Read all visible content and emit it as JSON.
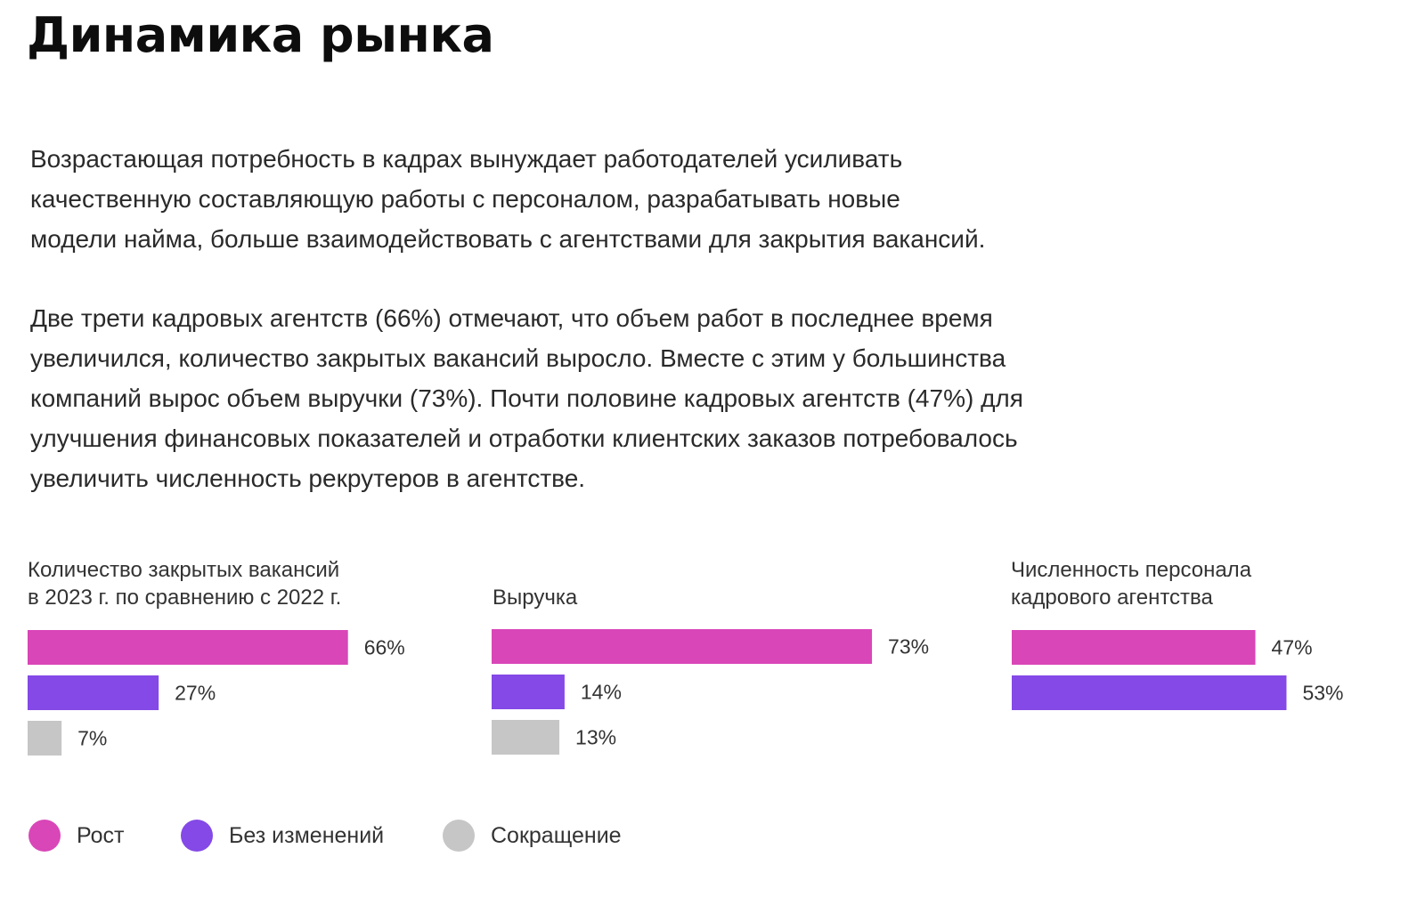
{
  "title": "Динамика рынка",
  "paragraphs": [
    {
      "lines": [
        "Возрастающая потребность в кадрах вынуждает работодателей усиливать",
        "качественную составляющую работы с персоналом, разрабатывать новые",
        "модели найма, больше взаимодействовать с агентствами для закрытия вакансий."
      ]
    },
    {
      "lines": [
        "Две трети кадровых агентств (66%) отмечают, что объем работ в последнее время",
        "увеличился, количество закрытых вакансий выросло. Вместе с этим у большинства",
        "компаний вырос объем выручки (73%). Почти половине кадровых агентств (47%) для",
        "улучшения финансовых показателей и отработки клиентских заказов потребовалось",
        "увеличить численность рекрутеров в агентстве."
      ]
    }
  ],
  "colors": {
    "growth": "#d946b8",
    "no_change": "#8449e6",
    "decline": "#c6c6c6"
  },
  "legend": [
    {
      "label": "Рост",
      "color": "#d946b8"
    },
    {
      "label": "Без изменений",
      "color": "#8449e6"
    },
    {
      "label": "Сокращение",
      "color": "#c6c6c6"
    }
  ],
  "chart_data": [
    {
      "type": "bar",
      "orientation": "horizontal",
      "title_lines": [
        "Количество закрытых вакансий",
        "в 2023 г. по сравнению с 2022 г."
      ],
      "categories": [
        "Рост",
        "Без изменений",
        "Сокращение"
      ],
      "values": [
        66,
        27,
        7
      ],
      "labels": [
        "66%",
        "27%",
        "7%"
      ],
      "colors": [
        "#d946b8",
        "#8449e6",
        "#c6c6c6"
      ],
      "unit": "%"
    },
    {
      "type": "bar",
      "orientation": "horizontal",
      "title_lines": [
        "Выручка"
      ],
      "categories": [
        "Рост",
        "Без изменений",
        "Сокращение"
      ],
      "values": [
        73,
        14,
        13
      ],
      "labels": [
        "73%",
        "14%",
        "13%"
      ],
      "colors": [
        "#d946b8",
        "#8449e6",
        "#c6c6c6"
      ],
      "unit": "%"
    },
    {
      "type": "bar",
      "orientation": "horizontal",
      "title_lines": [
        "Численность персонала",
        "кадрового агентства"
      ],
      "categories": [
        "Рост",
        "Без изменений"
      ],
      "values": [
        47,
        53
      ],
      "labels": [
        "47%",
        "53%"
      ],
      "colors": [
        "#d946b8",
        "#8449e6"
      ],
      "unit": "%"
    }
  ]
}
